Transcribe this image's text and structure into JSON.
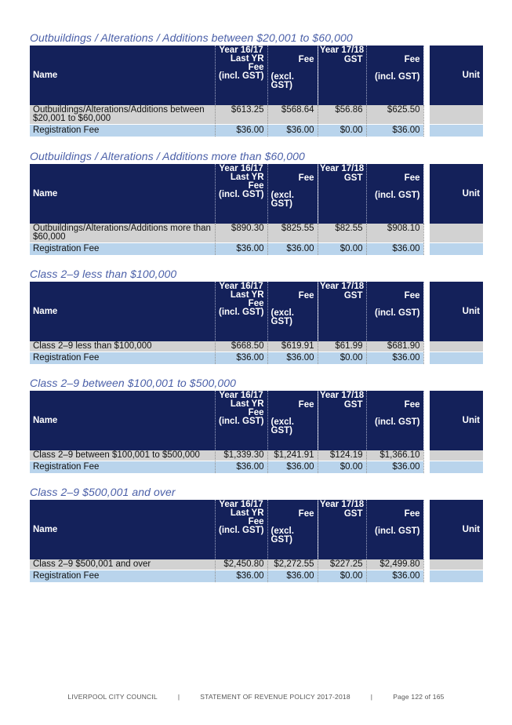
{
  "headers": {
    "name": "Name",
    "year_prev": "Year 16/17",
    "last_yr_fee": "Last YR Fee",
    "incl_gst": "(incl. GST)",
    "year_curr": "Year 17/18",
    "fee": "Fee",
    "excl_gst": "(excl. GST)",
    "gst": "GST",
    "fee_incl": "Fee",
    "fee_incl_sub": "(incl. GST)",
    "unit": "Unit"
  },
  "sections": [
    {
      "title": "Outbuildings / Alterations / Additions between $20,001 to $60,000",
      "rows": [
        {
          "name": "Outbuildings/Alterations/Additions between $20,001 to $60,000",
          "last": "$613.25",
          "fee": "$568.64",
          "gst": "$56.86",
          "fee_incl": "$625.50",
          "unit": ""
        },
        {
          "name": "Registration Fee",
          "last": "$36.00",
          "fee": "$36.00",
          "gst": "$0.00",
          "fee_incl": "$36.00",
          "unit": ""
        }
      ]
    },
    {
      "title": "Outbuildings / Alterations / Additions more than $60,000",
      "rows": [
        {
          "name": "Outbuildings/Alterations/Additions more than $60,000",
          "last": "$890.30",
          "fee": "$825.55",
          "gst": "$82.55",
          "fee_incl": "$908.10",
          "unit": ""
        },
        {
          "name": "Registration Fee",
          "last": "$36.00",
          "fee": "$36.00",
          "gst": "$0.00",
          "fee_incl": "$36.00",
          "unit": ""
        }
      ]
    },
    {
      "title": "Class 2–9 less than $100,000",
      "rows": [
        {
          "name": "Class 2–9 less than $100,000",
          "last": "$668.50",
          "fee": "$619.91",
          "gst": "$61.99",
          "fee_incl": "$681.90",
          "unit": ""
        },
        {
          "name": "Registration Fee",
          "last": "$36.00",
          "fee": "$36.00",
          "gst": "$0.00",
          "fee_incl": "$36.00",
          "unit": ""
        }
      ]
    },
    {
      "title": "Class 2–9 between $100,001 to $500,000",
      "rows": [
        {
          "name": "Class 2–9 between $100,001 to $500,000",
          "last": "$1,339.30",
          "fee": "$1,241.91",
          "gst": "$124.19",
          "fee_incl": "$1,366.10",
          "unit": ""
        },
        {
          "name": "Registration Fee",
          "last": "$36.00",
          "fee": "$36.00",
          "gst": "$0.00",
          "fee_incl": "$36.00",
          "unit": ""
        }
      ]
    },
    {
      "title": "Class 2–9  $500,001 and over",
      "rows": [
        {
          "name": "Class 2–9  $500,001 and over",
          "last": "$2,450.80",
          "fee": "$2,272.55",
          "gst": "$227.25",
          "fee_incl": "$2,499.80",
          "unit": ""
        },
        {
          "name": "Registration Fee",
          "last": "$36.00",
          "fee": "$36.00",
          "gst": "$0.00",
          "fee_incl": "$36.00",
          "unit": ""
        }
      ]
    }
  ],
  "footer": {
    "org": "LIVERPOOL CITY COUNCIL",
    "doc": "STATEMENT OF REVENUE POLICY 2017-2018",
    "page": "Page 122 of 165"
  },
  "colors": {
    "header_bg": "#14215a",
    "title_text": "#4a5fa8",
    "item_row_bg": "#d2d2d2",
    "registration_row_bg": "#b9d4ec"
  }
}
